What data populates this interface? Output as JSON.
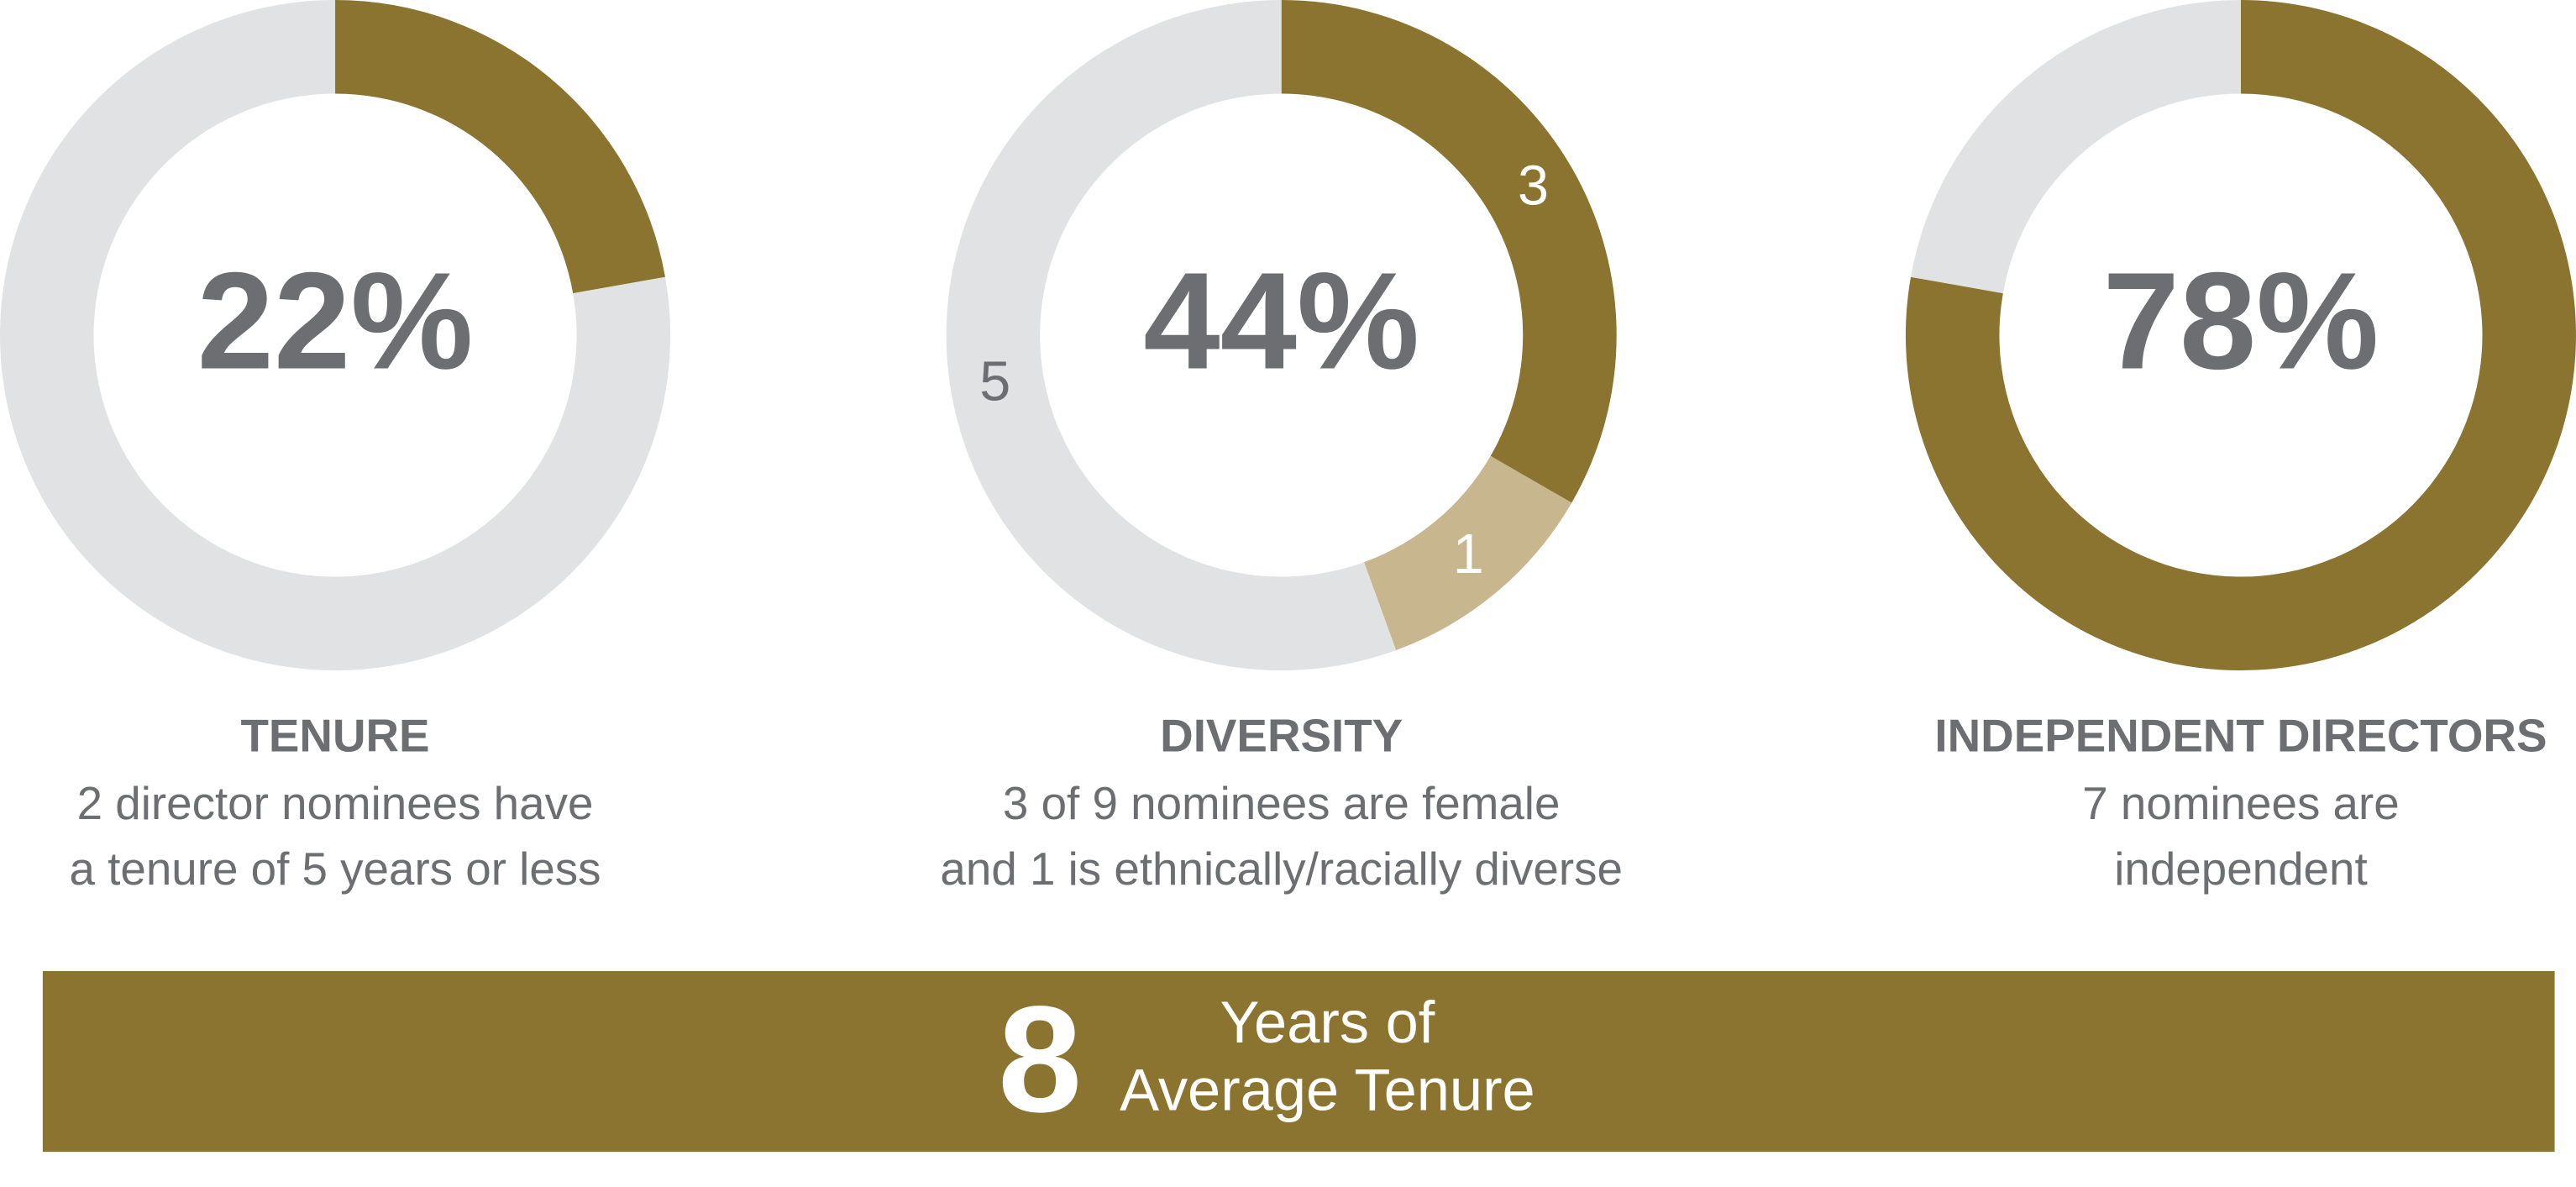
{
  "chart_data": [
    {
      "type": "pie",
      "donut": true,
      "center_label": "22%",
      "title": "TENURE",
      "description": [
        "2 director nominees have",
        "a tenure of 5 years or less"
      ],
      "values": [
        2,
        7
      ],
      "colors": [
        "#8a7430",
        "#e1e2e3"
      ],
      "show_value_labels": false
    },
    {
      "type": "pie",
      "donut": true,
      "center_label": "44%",
      "title": "DIVERSITY",
      "description": [
        "3 of 9 nominees are female",
        "and 1 is ethnically/racially diverse"
      ],
      "values": [
        3,
        1,
        5
      ],
      "colors": [
        "#8a7430",
        "#c8b68e",
        "#e1e2e3"
      ],
      "show_value_labels": true,
      "value_label_colors": [
        "#ffffff",
        "#ffffff",
        "#6d6e71"
      ]
    },
    {
      "type": "pie",
      "donut": true,
      "center_label": "78%",
      "title": "INDEPENDENT DIRECTORS",
      "description": [
        "7 nominees are",
        "independent"
      ],
      "values": [
        7,
        2
      ],
      "colors": [
        "#8a7430",
        "#e1e2e3"
      ],
      "show_value_labels": false
    }
  ],
  "banner": {
    "number": 8,
    "text_lines": [
      "Years of",
      "Average Tenure"
    ],
    "color": "#8a7430"
  }
}
